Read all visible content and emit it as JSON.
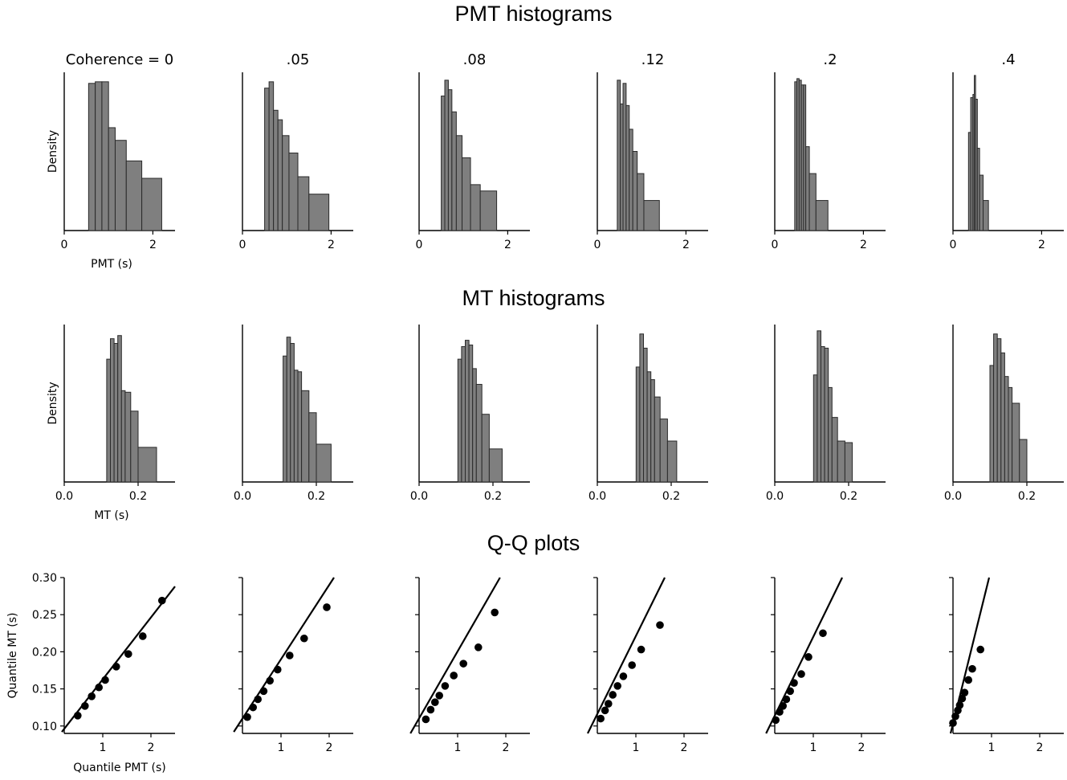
{
  "titles": {
    "pmt": "PMT histograms",
    "mt": "MT histograms",
    "qq": "Q-Q plots"
  },
  "colors": {
    "bar_fill": "#7f7f7f",
    "bar_edge": "#2a2a2a",
    "axis": "#000000",
    "marker": "#000000"
  },
  "chart_data": [
    {
      "type": "bar",
      "row": "PMT histograms",
      "xlabel": "PMT (s)",
      "ylabel": "Density",
      "xlim": [
        0,
        2.5
      ],
      "xticks": [
        "0",
        "2"
      ],
      "panels": [
        {
          "title": "Coherence = 0",
          "bins": [
            [
              0.55,
              0.7,
              0.93
            ],
            [
              0.7,
              0.85,
              0.94
            ],
            [
              0.85,
              1.0,
              0.94
            ],
            [
              1.0,
              1.15,
              0.65
            ],
            [
              1.15,
              1.4,
              0.57
            ],
            [
              1.4,
              1.75,
              0.44
            ],
            [
              1.75,
              2.2,
              0.33
            ]
          ]
        },
        {
          "title": ".05",
          "bins": [
            [
              0.5,
              0.6,
              0.9
            ],
            [
              0.6,
              0.7,
              0.94
            ],
            [
              0.7,
              0.8,
              0.76
            ],
            [
              0.8,
              0.9,
              0.7
            ],
            [
              0.9,
              1.05,
              0.6
            ],
            [
              1.05,
              1.25,
              0.49
            ],
            [
              1.25,
              1.5,
              0.34
            ],
            [
              1.5,
              1.95,
              0.23
            ]
          ]
        },
        {
          "title": ".08",
          "bins": [
            [
              0.5,
              0.58,
              0.85
            ],
            [
              0.58,
              0.66,
              0.95
            ],
            [
              0.66,
              0.74,
              0.89
            ],
            [
              0.74,
              0.84,
              0.75
            ],
            [
              0.84,
              0.97,
              0.6
            ],
            [
              0.97,
              1.16,
              0.46
            ],
            [
              1.16,
              1.38,
              0.29
            ],
            [
              1.38,
              1.75,
              0.25
            ]
          ]
        },
        {
          "title": ".12",
          "bins": [
            [
              0.45,
              0.52,
              0.95
            ],
            [
              0.52,
              0.58,
              0.8
            ],
            [
              0.58,
              0.65,
              0.93
            ],
            [
              0.65,
              0.72,
              0.79
            ],
            [
              0.72,
              0.8,
              0.64
            ],
            [
              0.8,
              0.9,
              0.5
            ],
            [
              0.9,
              1.05,
              0.36
            ],
            [
              1.05,
              1.4,
              0.19
            ]
          ]
        },
        {
          "title": ".2",
          "bins": [
            [
              0.45,
              0.5,
              0.94
            ],
            [
              0.5,
              0.55,
              0.96
            ],
            [
              0.55,
              0.6,
              0.95
            ],
            [
              0.6,
              0.65,
              0.92
            ],
            [
              0.65,
              0.7,
              0.92
            ],
            [
              0.7,
              0.78,
              0.53
            ],
            [
              0.78,
              0.93,
              0.36
            ],
            [
              0.93,
              1.2,
              0.19
            ]
          ]
        },
        {
          "title": ".4",
          "bins": [
            [
              0.35,
              0.4,
              0.62
            ],
            [
              0.4,
              0.45,
              0.84
            ],
            [
              0.45,
              0.48,
              0.86
            ],
            [
              0.48,
              0.51,
              0.98
            ],
            [
              0.51,
              0.55,
              0.83
            ],
            [
              0.55,
              0.6,
              0.52
            ],
            [
              0.6,
              0.68,
              0.35
            ],
            [
              0.68,
              0.8,
              0.19
            ]
          ]
        }
      ]
    },
    {
      "type": "bar",
      "row": "MT histograms",
      "xlabel": "MT (s)",
      "ylabel": "Density",
      "xlim": [
        0,
        0.3
      ],
      "xticks": [
        "0.0",
        "0.2"
      ],
      "panels": [
        {
          "title": "",
          "bins": [
            [
              0.115,
              0.125,
              0.78
            ],
            [
              0.125,
              0.135,
              0.91
            ],
            [
              0.135,
              0.145,
              0.88
            ],
            [
              0.145,
              0.155,
              0.93
            ],
            [
              0.155,
              0.165,
              0.58
            ],
            [
              0.165,
              0.18,
              0.57
            ],
            [
              0.18,
              0.2,
              0.45
            ],
            [
              0.2,
              0.25,
              0.22
            ]
          ]
        },
        {
          "title": "",
          "bins": [
            [
              0.11,
              0.12,
              0.8
            ],
            [
              0.12,
              0.13,
              0.92
            ],
            [
              0.13,
              0.14,
              0.88
            ],
            [
              0.14,
              0.15,
              0.71
            ],
            [
              0.15,
              0.16,
              0.7
            ],
            [
              0.16,
              0.18,
              0.58
            ],
            [
              0.18,
              0.2,
              0.44
            ],
            [
              0.2,
              0.24,
              0.24
            ]
          ]
        },
        {
          "title": "",
          "bins": [
            [
              0.105,
              0.115,
              0.78
            ],
            [
              0.115,
              0.125,
              0.86
            ],
            [
              0.125,
              0.135,
              0.9
            ],
            [
              0.135,
              0.145,
              0.87
            ],
            [
              0.145,
              0.155,
              0.72
            ],
            [
              0.155,
              0.17,
              0.62
            ],
            [
              0.17,
              0.19,
              0.43
            ],
            [
              0.19,
              0.225,
              0.21
            ]
          ]
        },
        {
          "title": "",
          "bins": [
            [
              0.105,
              0.115,
              0.73
            ],
            [
              0.115,
              0.125,
              0.94
            ],
            [
              0.125,
              0.135,
              0.85
            ],
            [
              0.135,
              0.145,
              0.7
            ],
            [
              0.145,
              0.155,
              0.65
            ],
            [
              0.155,
              0.17,
              0.54
            ],
            [
              0.17,
              0.19,
              0.4
            ],
            [
              0.19,
              0.215,
              0.26
            ]
          ]
        },
        {
          "title": "",
          "bins": [
            [
              0.105,
              0.115,
              0.68
            ],
            [
              0.115,
              0.125,
              0.96
            ],
            [
              0.125,
              0.135,
              0.86
            ],
            [
              0.135,
              0.145,
              0.85
            ],
            [
              0.145,
              0.155,
              0.6
            ],
            [
              0.155,
              0.17,
              0.41
            ],
            [
              0.17,
              0.19,
              0.26
            ],
            [
              0.19,
              0.21,
              0.25
            ]
          ]
        },
        {
          "title": "",
          "bins": [
            [
              0.1,
              0.11,
              0.74
            ],
            [
              0.11,
              0.12,
              0.94
            ],
            [
              0.12,
              0.13,
              0.91
            ],
            [
              0.13,
              0.14,
              0.82
            ],
            [
              0.14,
              0.15,
              0.67
            ],
            [
              0.15,
              0.16,
              0.6
            ],
            [
              0.16,
              0.18,
              0.5
            ],
            [
              0.18,
              0.2,
              0.27
            ]
          ]
        }
      ]
    },
    {
      "type": "scatter",
      "row": "Q-Q plots",
      "xlabel": "Quantile PMT (s)",
      "ylabel": "Quantile MT (s)",
      "xlim": [
        0.2,
        2.5
      ],
      "ylim": [
        0.09,
        0.3
      ],
      "xticks": [
        "1",
        "2"
      ],
      "yticks": [
        "0.10",
        "0.15",
        "0.20",
        "0.25",
        "0.30"
      ],
      "panels": [
        {
          "title": "",
          "line": [
            [
              0.15,
              0.092
            ],
            [
              2.5,
              0.288
            ]
          ],
          "points": [
            [
              0.48,
              0.114
            ],
            [
              0.63,
              0.127
            ],
            [
              0.77,
              0.14
            ],
            [
              0.92,
              0.152
            ],
            [
              1.05,
              0.162
            ],
            [
              1.28,
              0.18
            ],
            [
              1.53,
              0.197
            ],
            [
              1.83,
              0.221
            ],
            [
              2.23,
              0.269
            ]
          ]
        },
        {
          "title": "",
          "line": [
            [
              0.02,
              0.092
            ],
            [
              2.1,
              0.3
            ]
          ],
          "points": [
            [
              0.3,
              0.112
            ],
            [
              0.42,
              0.125
            ],
            [
              0.52,
              0.136
            ],
            [
              0.64,
              0.147
            ],
            [
              0.77,
              0.161
            ],
            [
              0.93,
              0.176
            ],
            [
              1.18,
              0.195
            ],
            [
              1.48,
              0.218
            ],
            [
              1.95,
              0.26
            ]
          ]
        },
        {
          "title": "",
          "line": [
            [
              0.02,
              0.09
            ],
            [
              1.88,
              0.3
            ]
          ],
          "points": [
            [
              0.34,
              0.109
            ],
            [
              0.44,
              0.122
            ],
            [
              0.53,
              0.132
            ],
            [
              0.62,
              0.141
            ],
            [
              0.74,
              0.154
            ],
            [
              0.92,
              0.168
            ],
            [
              1.12,
              0.184
            ],
            [
              1.43,
              0.206
            ],
            [
              1.77,
              0.253
            ]
          ]
        },
        {
          "title": "",
          "line": [
            [
              0.0,
              0.09
            ],
            [
              1.6,
              0.3
            ]
          ],
          "points": [
            [
              0.27,
              0.11
            ],
            [
              0.36,
              0.121
            ],
            [
              0.43,
              0.13
            ],
            [
              0.52,
              0.142
            ],
            [
              0.62,
              0.154
            ],
            [
              0.74,
              0.167
            ],
            [
              0.92,
              0.182
            ],
            [
              1.11,
              0.203
            ],
            [
              1.5,
              0.236
            ]
          ]
        },
        {
          "title": "",
          "line": [
            [
              0.02,
              0.09
            ],
            [
              1.6,
              0.3
            ]
          ],
          "points": [
            [
              0.22,
              0.108
            ],
            [
              0.3,
              0.119
            ],
            [
              0.37,
              0.127
            ],
            [
              0.44,
              0.136
            ],
            [
              0.52,
              0.147
            ],
            [
              0.6,
              0.158
            ],
            [
              0.75,
              0.17
            ],
            [
              0.9,
              0.193
            ],
            [
              1.2,
              0.225
            ]
          ]
        },
        {
          "title": "",
          "line": [
            [
              0.15,
              0.09
            ],
            [
              0.95,
              0.3
            ]
          ],
          "points": [
            [
              0.2,
              0.104
            ],
            [
              0.25,
              0.113
            ],
            [
              0.3,
              0.121
            ],
            [
              0.34,
              0.128
            ],
            [
              0.39,
              0.137
            ],
            [
              0.44,
              0.145
            ],
            [
              0.52,
              0.162
            ],
            [
              0.6,
              0.177
            ],
            [
              0.77,
              0.203
            ]
          ]
        }
      ]
    }
  ]
}
